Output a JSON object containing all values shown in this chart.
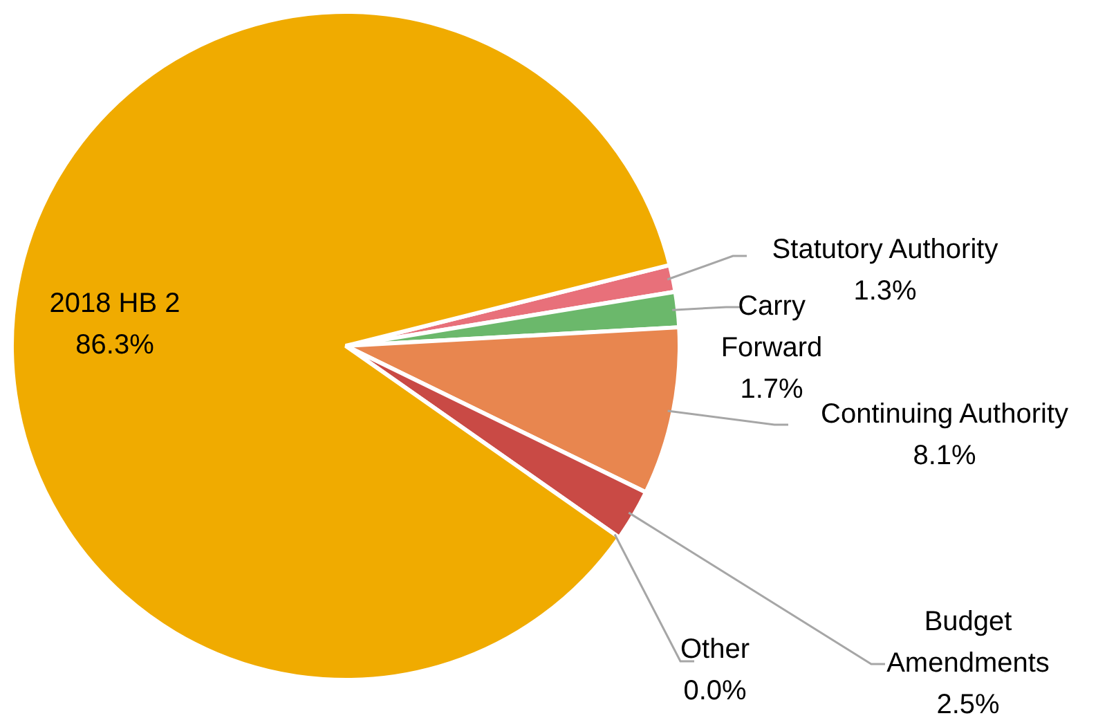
{
  "chart_data": {
    "type": "pie",
    "categories": [
      "Statutory Authority",
      "Carry Forward",
      "Continuing Authority",
      "Budget Amendments",
      "Other",
      "2018 HB 2"
    ],
    "values": [
      1.3,
      1.7,
      8.1,
      2.5,
      0.0,
      86.3
    ],
    "colors": [
      "#e8707a",
      "#6bb86b",
      "#e8864f",
      "#c94a45",
      "#7f7f7f",
      "#f0ab00"
    ],
    "value_labels": [
      "1.3%",
      "1.7%",
      "8.1%",
      "2.5%",
      "0.0%",
      "86.3%"
    ],
    "legend": false
  }
}
